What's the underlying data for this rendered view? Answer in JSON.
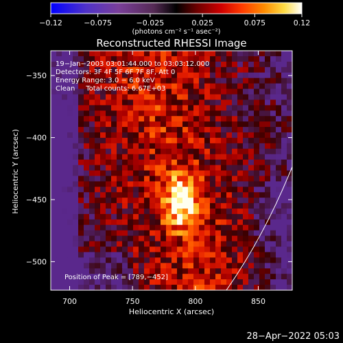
{
  "colorbar": {
    "tick_labels": [
      "−0.12",
      "−0.075",
      "−0.025",
      "0.025",
      "0.075",
      "0.12"
    ],
    "tick_values": [
      -0.12,
      -0.075,
      -0.025,
      0.025,
      0.075,
      0.12
    ],
    "range": [
      -0.12,
      0.12
    ],
    "units": "(photons cm⁻² s⁻¹ asec⁻²)",
    "colormap": [
      "#0000ff",
      "#4f32c8",
      "#7a3f9a",
      "#552a55",
      "#000000",
      "#5a0000",
      "#c00000",
      "#ff3000",
      "#ff8800",
      "#ffdd44",
      "#ffffff"
    ]
  },
  "plot": {
    "title": "Reconstructed RHESSI Image",
    "xlabel": "Heliocentric X (arcsec)",
    "ylabel": "Heliocentric Y (arcsec)",
    "x_ticks": [
      "700",
      "750",
      "800",
      "850"
    ],
    "x_tick_values": [
      700,
      750,
      800,
      850
    ],
    "y_ticks": [
      "−350",
      "−400",
      "−450",
      "−500"
    ],
    "y_tick_values": [
      -350,
      -400,
      -450,
      -500
    ],
    "xlim": [
      685,
      877
    ],
    "ylim": [
      -523,
      -330
    ],
    "info_lines": [
      "19−Jan−2003 03:01:44.000 to 03:03:12.000",
      "Detectors: 3F 4F 5F 6F 7F 8F, Att 0",
      "Energy Range: 3.0 − 6.0 keV",
      "Clean     Total counts: 6.67E+03"
    ],
    "peak_label": "Position of Peak = [789,−452]",
    "peak_position": [
      789,
      -452
    ]
  },
  "timestamp": "28−Apr−2022 05:03"
}
